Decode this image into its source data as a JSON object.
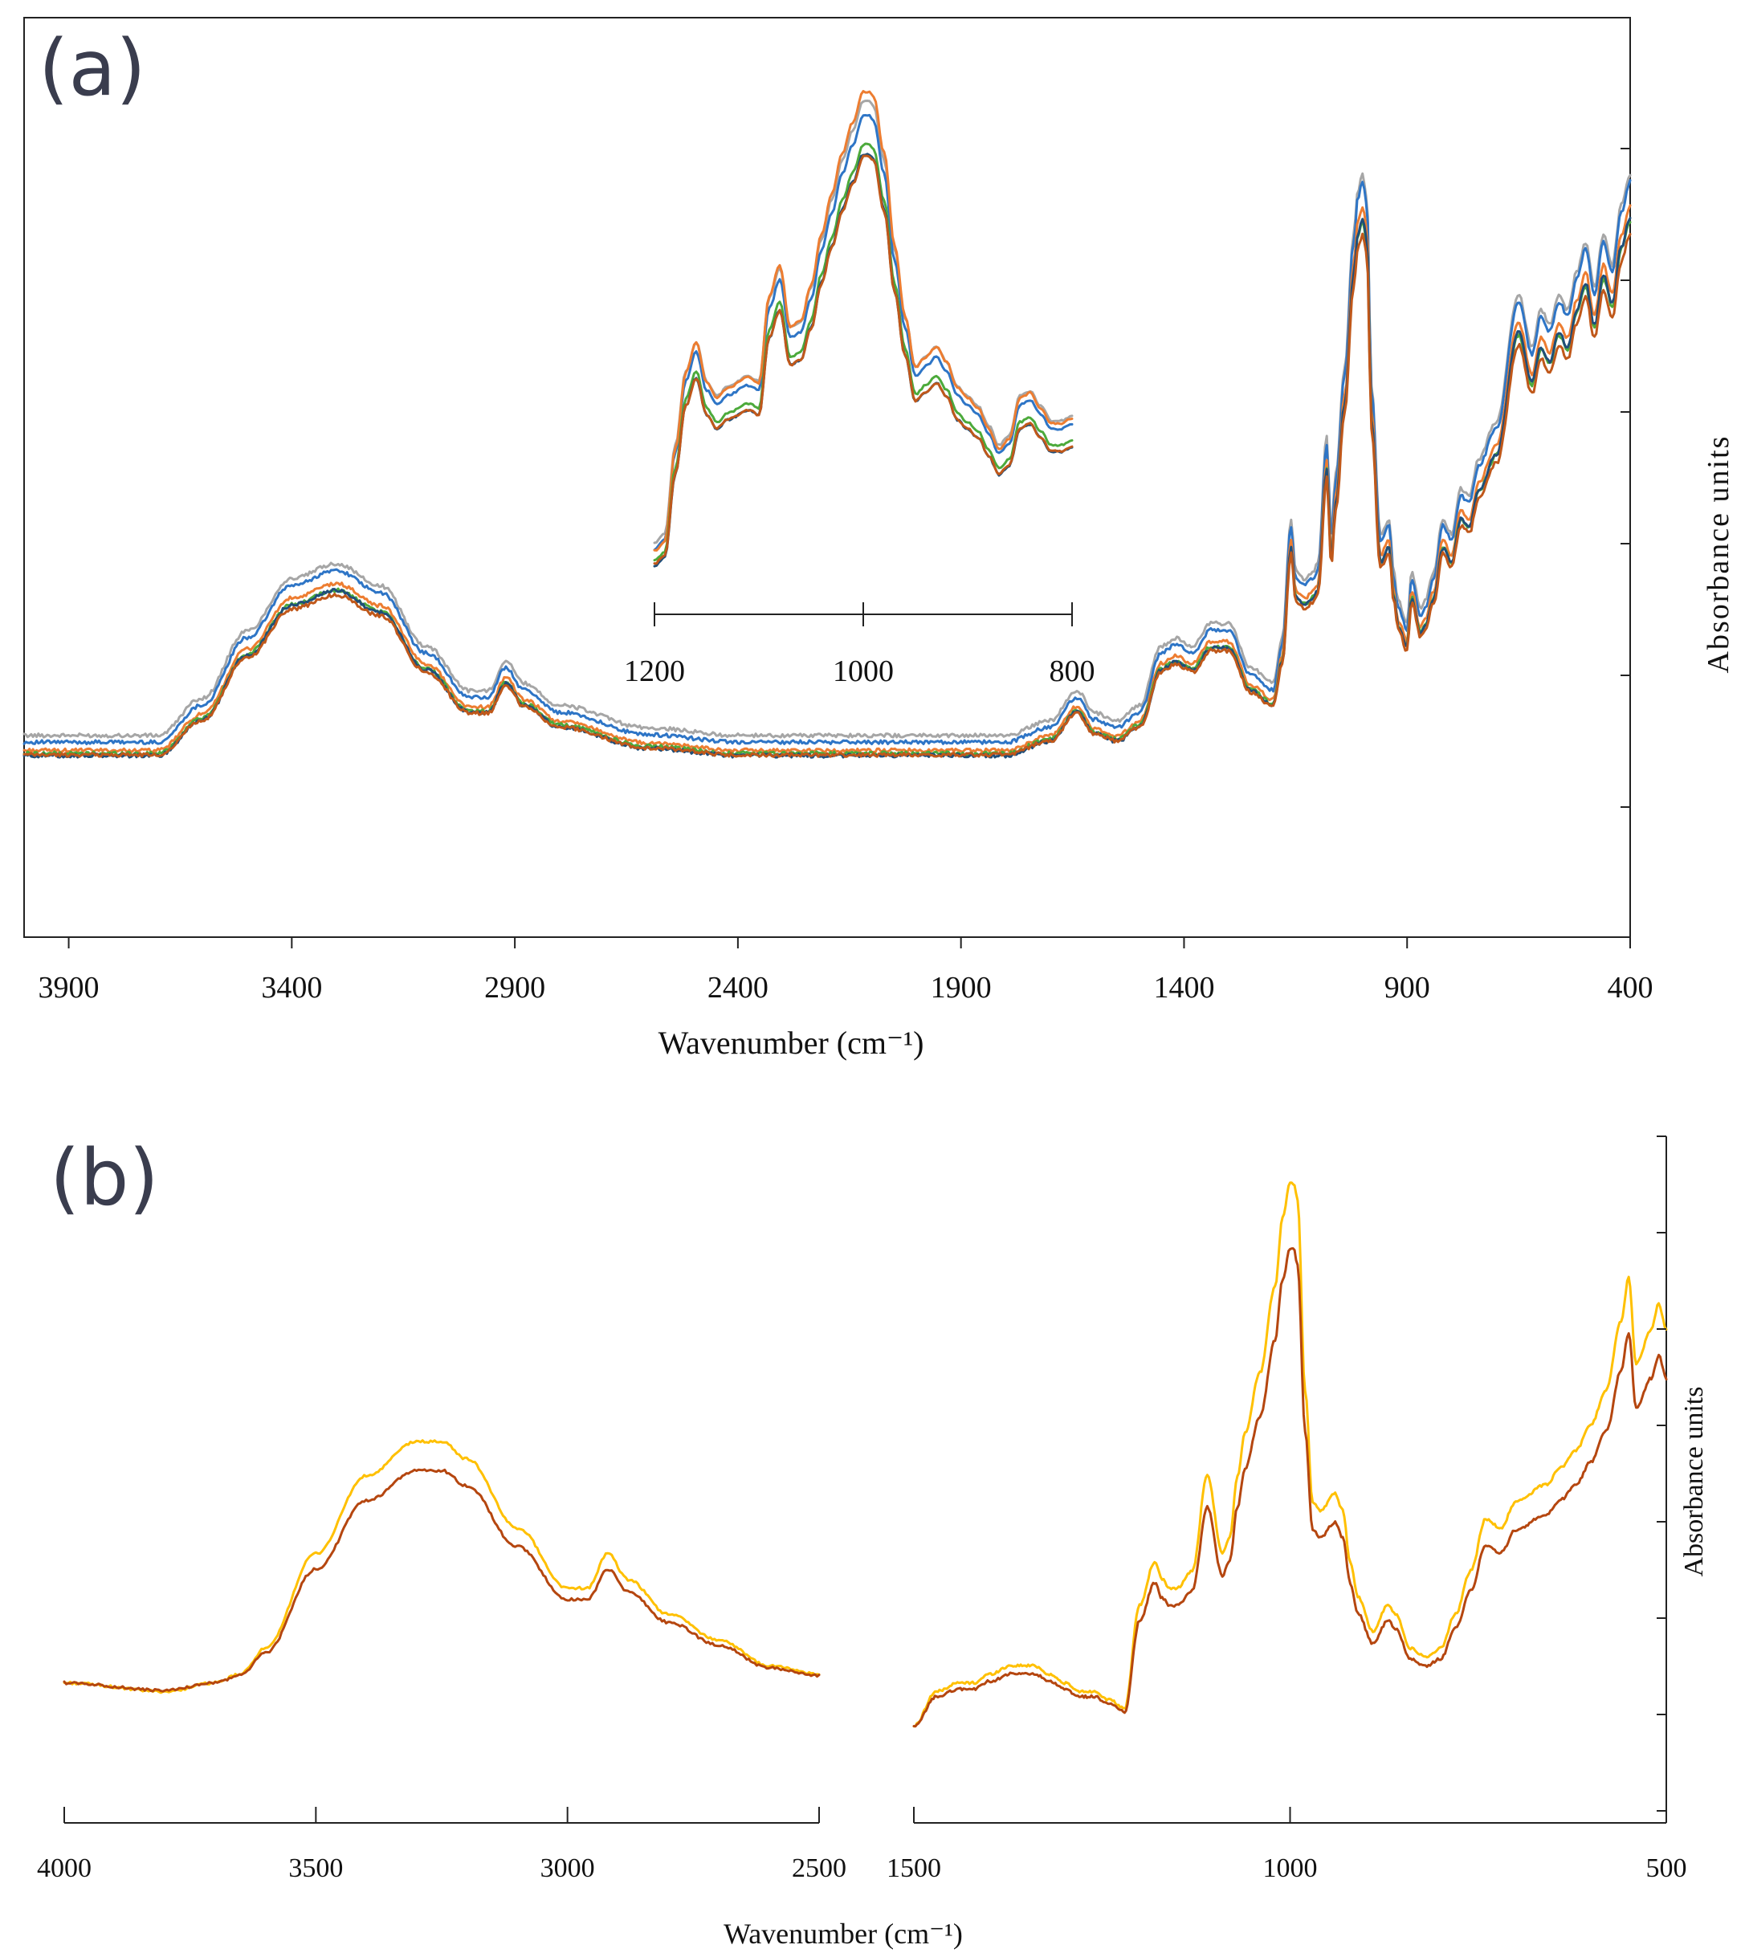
{
  "chart_data": [
    {
      "panel": "(a)",
      "type": "line",
      "xlabel": "Wavenumber (cm⁻¹)",
      "ylabel": "Absorbance units",
      "xlim": [
        4000,
        400
      ],
      "ylim": [
        0,
        1
      ],
      "xticks": [
        3900,
        3400,
        2900,
        2400,
        1900,
        1400,
        900,
        400
      ],
      "yticks_count": 6,
      "grid": false,
      "series": [
        {
          "name": "grey",
          "color": "#a6a6a6",
          "offset": 0.015,
          "scale": 1.0
        },
        {
          "name": "blue",
          "color": "#2e75c6",
          "offset": 0.006,
          "scale": 1.0
        },
        {
          "name": "orange",
          "color": "#ed7d31",
          "offset": -0.005,
          "scale": 0.97
        },
        {
          "name": "green",
          "color": "#4caa3b",
          "offset": -0.009,
          "scale": 0.95
        },
        {
          "name": "dark-blue",
          "color": "#1f4e79",
          "offset": -0.012,
          "scale": 0.96
        },
        {
          "name": "brown",
          "color": "#c0581a",
          "offset": -0.011,
          "scale": 0.93
        }
      ],
      "profile": {
        "x": [
          4000,
          3700,
          3600,
          3500,
          3400,
          3300,
          3200,
          3100,
          3000,
          2960,
          2920,
          2880,
          2800,
          2600,
          2400,
          2000,
          1800,
          1700,
          1640,
          1600,
          1550,
          1500,
          1450,
          1420,
          1380,
          1340,
          1300,
          1250,
          1200,
          1180,
          1160,
          1150,
          1130,
          1110,
          1100,
          1080,
          1070,
          1060,
          1040,
          1020,
          1010,
          1000,
          990,
          980,
          960,
          940,
          930,
          920,
          900,
          890,
          870,
          860,
          840,
          820,
          800,
          780,
          760,
          740,
          700,
          650,
          620,
          600,
          580,
          560,
          540,
          520,
          500,
          480,
          460,
          440,
          420,
          400
        ],
        "y": [
          0.13,
          0.13,
          0.18,
          0.27,
          0.34,
          0.36,
          0.33,
          0.25,
          0.19,
          0.19,
          0.23,
          0.2,
          0.17,
          0.14,
          0.13,
          0.13,
          0.13,
          0.15,
          0.19,
          0.16,
          0.15,
          0.17,
          0.25,
          0.26,
          0.25,
          0.28,
          0.28,
          0.22,
          0.2,
          0.26,
          0.42,
          0.35,
          0.34,
          0.35,
          0.36,
          0.53,
          0.4,
          0.48,
          0.62,
          0.8,
          0.86,
          0.88,
          0.85,
          0.6,
          0.4,
          0.42,
          0.35,
          0.31,
          0.28,
          0.35,
          0.3,
          0.31,
          0.35,
          0.42,
          0.4,
          0.46,
          0.45,
          0.5,
          0.55,
          0.72,
          0.65,
          0.7,
          0.68,
          0.72,
          0.7,
          0.75,
          0.79,
          0.73,
          0.8,
          0.76,
          0.84,
          0.88
        ]
      },
      "inset": {
        "xlim": [
          1200,
          800
        ],
        "xticks": [
          1200,
          1000,
          800
        ],
        "series_scale": [
          1.02,
          1.0,
          1.06,
          0.96,
          0.95,
          0.94
        ],
        "profile": {
          "x": [
            1200,
            1190,
            1180,
            1170,
            1160,
            1150,
            1140,
            1130,
            1110,
            1100,
            1090,
            1080,
            1070,
            1060,
            1050,
            1040,
            1030,
            1020,
            1010,
            1000,
            995,
            990,
            980,
            970,
            960,
            950,
            940,
            930,
            920,
            910,
            900,
            890,
            880,
            870,
            860,
            850,
            840,
            830,
            820,
            810,
            800
          ],
          "y": [
            0.1,
            0.12,
            0.3,
            0.45,
            0.51,
            0.43,
            0.4,
            0.42,
            0.44,
            0.43,
            0.6,
            0.66,
            0.54,
            0.55,
            0.62,
            0.72,
            0.8,
            0.88,
            0.94,
            1.0,
            1.0,
            0.99,
            0.88,
            0.7,
            0.56,
            0.46,
            0.48,
            0.5,
            0.47,
            0.42,
            0.4,
            0.38,
            0.34,
            0.3,
            0.32,
            0.4,
            0.41,
            0.38,
            0.35,
            0.35,
            0.36
          ]
        }
      }
    },
    {
      "panel": "(b)",
      "type": "line",
      "xlabel": "Wavenumber (cm⁻¹)",
      "ylabel": "Absorbance units",
      "grid": false,
      "axis_break": true,
      "segments": [
        {
          "xlim": [
            4000,
            2500
          ],
          "xticks": [
            4000,
            3500,
            3000,
            2500
          ]
        },
        {
          "xlim": [
            1500,
            500
          ],
          "xticks": [
            1500,
            1000,
            500
          ]
        }
      ],
      "ylim": [
        0,
        1
      ],
      "yticks_count": 8,
      "series": [
        {
          "name": "yellow",
          "color": "#ffc000",
          "scale": 1.0
        },
        {
          "name": "brown",
          "color": "#b5460f",
          "scale": 0.88
        }
      ],
      "profile_high": {
        "x": [
          4000,
          3800,
          3700,
          3650,
          3600,
          3500,
          3400,
          3300,
          3250,
          3200,
          3100,
          3000,
          2960,
          2920,
          2880,
          2800,
          2700,
          2600,
          2500
        ],
        "y": [
          0.06,
          0.05,
          0.06,
          0.07,
          0.1,
          0.21,
          0.3,
          0.34,
          0.34,
          0.32,
          0.24,
          0.17,
          0.17,
          0.21,
          0.18,
          0.14,
          0.11,
          0.08,
          0.07
        ],
        "base": 0.06
      },
      "profile_low": {
        "x": [
          1500,
          1470,
          1440,
          1420,
          1400,
          1370,
          1340,
          1320,
          1300,
          1280,
          1260,
          1240,
          1220,
          1200,
          1180,
          1170,
          1160,
          1150,
          1130,
          1110,
          1090,
          1080,
          1070,
          1060,
          1040,
          1020,
          1010,
          1000,
          995,
          990,
          980,
          970,
          960,
          940,
          930,
          920,
          910,
          890,
          870,
          860,
          840,
          820,
          800,
          780,
          760,
          740,
          720,
          700,
          660,
          640,
          620,
          600,
          580,
          560,
          550,
          540,
          520,
          510,
          500
        ],
        "y": [
          0.01,
          0.05,
          0.06,
          0.06,
          0.07,
          0.08,
          0.08,
          0.07,
          0.06,
          0.05,
          0.05,
          0.04,
          0.03,
          0.15,
          0.2,
          0.18,
          0.17,
          0.17,
          0.19,
          0.3,
          0.21,
          0.23,
          0.3,
          0.35,
          0.42,
          0.52,
          0.6,
          0.64,
          0.64,
          0.62,
          0.4,
          0.27,
          0.26,
          0.28,
          0.26,
          0.2,
          0.16,
          0.12,
          0.15,
          0.14,
          0.1,
          0.09,
          0.1,
          0.14,
          0.19,
          0.25,
          0.24,
          0.27,
          0.29,
          0.31,
          0.33,
          0.36,
          0.4,
          0.48,
          0.53,
          0.43,
          0.47,
          0.5,
          0.47
        ],
        "base": 0.0
      }
    }
  ]
}
